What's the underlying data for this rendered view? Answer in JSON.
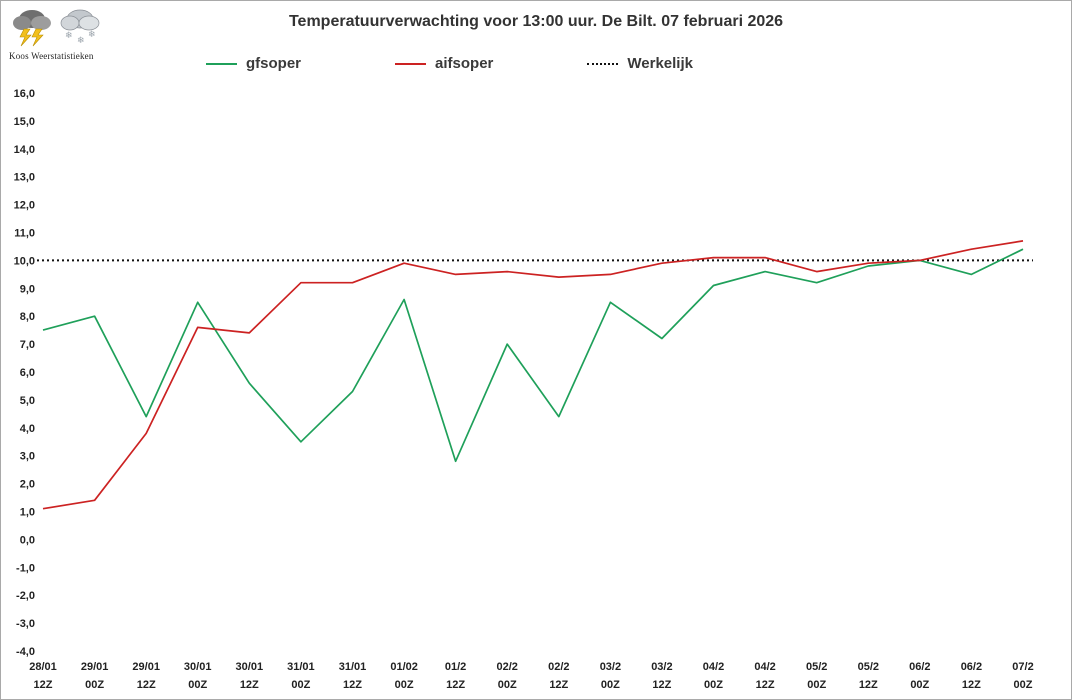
{
  "header": {
    "title": "Temperatuurverwachting voor 13:00 uur. De Bilt. 07 februari 2026",
    "logo_text": "Koos Weerstatistieken"
  },
  "legend": [
    {
      "label": "gfsoper",
      "color": "#1fa05a",
      "style": "solid"
    },
    {
      "label": "aifsoper",
      "color": "#cc2222",
      "style": "solid"
    },
    {
      "label": "Werkelijk",
      "color": "#111111",
      "style": "dotted"
    }
  ],
  "chart_data": {
    "type": "line",
    "title": "Temperatuurverwachting voor 13:00 uur. De Bilt. 07 februari 2026",
    "categories": [
      [
        "28/01",
        "12Z"
      ],
      [
        "29/01",
        "00Z"
      ],
      [
        "29/01",
        "12Z"
      ],
      [
        "30/01",
        "00Z"
      ],
      [
        "30/01",
        "12Z"
      ],
      [
        "31/01",
        "00Z"
      ],
      [
        "31/01",
        "12Z"
      ],
      [
        "01/02",
        "00Z"
      ],
      [
        "01/2",
        "12Z"
      ],
      [
        "02/2",
        "00Z"
      ],
      [
        "02/2",
        "12Z"
      ],
      [
        "03/2",
        "00Z"
      ],
      [
        "03/2",
        "12Z"
      ],
      [
        "04/2",
        "00Z"
      ],
      [
        "04/2",
        "12Z"
      ],
      [
        "05/2",
        "00Z"
      ],
      [
        "05/2",
        "12Z"
      ],
      [
        "06/2",
        "00Z"
      ],
      [
        "06/2",
        "12Z"
      ],
      [
        "07/2",
        "00Z"
      ]
    ],
    "series": [
      {
        "name": "gfsoper",
        "color": "#1fa05a",
        "values": [
          7.5,
          8.0,
          4.4,
          8.5,
          5.6,
          3.5,
          5.3,
          8.6,
          2.8,
          7.0,
          4.4,
          8.5,
          7.2,
          9.1,
          9.6,
          9.2,
          9.8,
          10.0,
          9.5,
          10.4
        ]
      },
      {
        "name": "aifsoper",
        "color": "#cc2222",
        "values": [
          1.1,
          1.4,
          3.8,
          7.6,
          7.4,
          9.2,
          9.2,
          9.9,
          9.5,
          9.6,
          9.4,
          9.5,
          9.9,
          10.1,
          10.1,
          9.6,
          9.9,
          10.0,
          10.4,
          10.7
        ]
      }
    ],
    "reference_line": {
      "name": "Werkelijk",
      "value": 10.0,
      "style": "dotted",
      "color": "#111111"
    },
    "ylim": [
      -4.0,
      16.0
    ],
    "y_step": 1.0,
    "y_tick_labels": [
      "16,0",
      "15,0",
      "14,0",
      "13,0",
      "12,0",
      "11,0",
      "10,0",
      "9,0",
      "8,0",
      "7,0",
      "6,0",
      "5,0",
      "4,0",
      "3,0",
      "2,0",
      "1,0",
      "0,0",
      "-1,0",
      "-2,0",
      "-3,0",
      "-4,0"
    ],
    "grid": false,
    "legend_position": "top"
  }
}
